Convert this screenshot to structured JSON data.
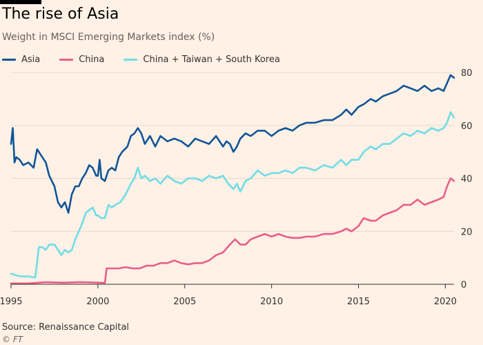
{
  "title": "The rise of Asia",
  "subtitle": "Weight in MSCI Emerging Markets index (%)",
  "source": "Source: Renaissance Capital",
  "credit": "© FT",
  "colors": {
    "background": "#fff1e5",
    "grid": "#e6d9ce",
    "axis": "#33302e",
    "asia": "#0f5499",
    "china": "#e95d8c",
    "ctk": "#70dce6"
  },
  "chart_data": {
    "type": "line",
    "title": "The rise of Asia",
    "subtitle": "Weight in MSCI Emerging Markets index (%)",
    "xlim": [
      1995,
      2020.5
    ],
    "ylim": [
      0,
      80
    ],
    "x_ticks": [
      1995,
      2000,
      2005,
      2010,
      2015,
      2020
    ],
    "y_ticks": [
      0,
      20,
      40,
      60,
      80
    ],
    "y_axis_side": "right",
    "grid": true,
    "legend_position": "top-left",
    "series": [
      {
        "name": "Asia",
        "color": "#0f5499",
        "x": [
          1995.0,
          1995.1,
          1995.2,
          1995.3,
          1995.5,
          1995.7,
          1996.0,
          1996.3,
          1996.5,
          1996.6,
          1996.8,
          1997.0,
          1997.2,
          1997.5,
          1997.7,
          1997.9,
          1998.1,
          1998.3,
          1998.5,
          1998.7,
          1998.9,
          1999.1,
          1999.3,
          1999.5,
          1999.7,
          1999.9,
          2000.0,
          2000.1,
          2000.2,
          2000.4,
          2000.6,
          2000.8,
          2001.0,
          2001.2,
          2001.4,
          2001.7,
          2001.9,
          2002.1,
          2002.3,
          2002.5,
          2002.7,
          2003.0,
          2003.3,
          2003.6,
          2004.0,
          2004.4,
          2004.8,
          2005.2,
          2005.6,
          2006.0,
          2006.4,
          2006.8,
          2007.2,
          2007.4,
          2007.6,
          2007.8,
          2008.0,
          2008.2,
          2008.5,
          2008.8,
          2009.2,
          2009.6,
          2010.0,
          2010.4,
          2010.8,
          2011.2,
          2011.6,
          2012.0,
          2012.5,
          2013.0,
          2013.5,
          2014.0,
          2014.3,
          2014.6,
          2015.0,
          2015.3,
          2015.7,
          2016.0,
          2016.4,
          2016.8,
          2017.2,
          2017.6,
          2018.0,
          2018.4,
          2018.8,
          2019.2,
          2019.6,
          2019.9,
          2020.1,
          2020.3,
          2020.5
        ],
        "y": [
          53,
          59,
          46,
          48,
          47,
          45,
          46,
          44,
          51,
          50,
          48,
          46,
          41,
          37,
          31,
          29,
          31,
          27,
          34,
          37,
          37,
          40,
          42,
          45,
          44,
          41,
          41,
          47,
          40,
          39,
          43,
          44,
          43,
          48,
          50,
          52,
          56,
          57,
          59,
          57,
          53,
          56,
          52,
          56,
          54,
          55,
          54,
          52,
          55,
          54,
          53,
          56,
          52,
          54,
          53,
          50,
          52,
          55,
          57,
          56,
          58,
          58,
          56,
          58,
          59,
          58,
          60,
          61,
          61,
          62,
          62,
          64,
          66,
          64,
          67,
          68,
          70,
          69,
          71,
          72,
          73,
          75,
          74,
          73,
          75,
          73,
          74,
          73,
          76,
          79,
          78
        ]
      },
      {
        "name": "China",
        "color": "#e95d8c",
        "x": [
          1995.0,
          1996.0,
          1997.0,
          1998.0,
          1999.0,
          2000.0,
          2000.4,
          2000.5,
          2000.8,
          2001.2,
          2001.6,
          2002.0,
          2002.4,
          2002.8,
          2003.2,
          2003.6,
          2004.0,
          2004.4,
          2004.8,
          2005.2,
          2005.6,
          2006.0,
          2006.4,
          2006.8,
          2007.2,
          2007.6,
          2007.9,
          2008.2,
          2008.5,
          2008.8,
          2009.2,
          2009.6,
          2010.0,
          2010.4,
          2010.8,
          2011.2,
          2011.6,
          2012.0,
          2012.5,
          2013.0,
          2013.5,
          2014.0,
          2014.3,
          2014.6,
          2015.0,
          2015.3,
          2015.7,
          2016.0,
          2016.4,
          2016.8,
          2017.2,
          2017.6,
          2018.0,
          2018.4,
          2018.8,
          2019.2,
          2019.6,
          2019.9,
          2020.1,
          2020.3,
          2020.5
        ],
        "y": [
          0.3,
          0.3,
          0.8,
          0.6,
          0.8,
          0.6,
          0.5,
          6,
          6,
          6,
          6.5,
          6,
          6,
          7,
          7,
          8,
          8,
          9,
          8,
          7.5,
          8,
          8,
          9,
          11,
          12,
          15,
          17,
          15,
          15,
          17,
          18,
          19,
          18,
          19,
          18,
          17.5,
          17.5,
          18,
          18,
          19,
          19,
          20,
          21,
          20,
          22,
          25,
          24,
          24,
          26,
          27,
          28,
          30,
          30,
          32,
          30,
          31,
          32,
          33,
          37,
          40,
          39
        ]
      },
      {
        "name": "China + Taiwan + South Korea",
        "color": "#70dce6",
        "x": [
          1995.0,
          1995.5,
          1996.0,
          1996.4,
          1996.6,
          1996.8,
          1997.0,
          1997.2,
          1997.5,
          1997.7,
          1997.9,
          1998.1,
          1998.3,
          1998.5,
          1998.7,
          1998.9,
          1999.1,
          1999.3,
          1999.5,
          1999.7,
          1999.9,
          2000.0,
          2000.2,
          2000.4,
          2000.6,
          2000.8,
          2001.0,
          2001.3,
          2001.6,
          2001.9,
          2002.1,
          2002.3,
          2002.5,
          2002.7,
          2003.0,
          2003.3,
          2003.6,
          2004.0,
          2004.4,
          2004.8,
          2005.2,
          2005.6,
          2006.0,
          2006.4,
          2006.8,
          2007.2,
          2007.5,
          2007.8,
          2008.0,
          2008.2,
          2008.5,
          2008.8,
          2009.2,
          2009.6,
          2010.0,
          2010.4,
          2010.8,
          2011.2,
          2011.6,
          2012.0,
          2012.5,
          2013.0,
          2013.5,
          2014.0,
          2014.3,
          2014.6,
          2015.0,
          2015.3,
          2015.7,
          2016.0,
          2016.4,
          2016.8,
          2017.2,
          2017.6,
          2018.0,
          2018.4,
          2018.8,
          2019.2,
          2019.6,
          2019.9,
          2020.1,
          2020.3,
          2020.5
        ],
        "y": [
          4,
          3,
          3,
          2.5,
          14,
          14,
          13,
          15,
          15,
          13,
          11,
          13,
          12,
          13,
          17,
          20,
          23,
          27,
          28,
          29,
          26,
          26,
          25,
          25,
          30,
          29,
          30,
          31,
          34,
          38,
          40,
          44,
          40,
          41,
          39,
          40,
          38,
          41,
          39,
          38,
          40,
          40,
          39,
          41,
          40,
          41,
          38,
          36,
          38,
          35,
          39,
          40,
          43,
          41,
          42,
          42,
          43,
          42,
          44,
          44,
          43,
          45,
          44,
          47,
          45,
          47,
          47,
          50,
          52,
          51,
          53,
          53,
          55,
          57,
          56,
          58,
          57,
          59,
          58,
          59,
          61,
          65,
          63
        ]
      }
    ]
  }
}
